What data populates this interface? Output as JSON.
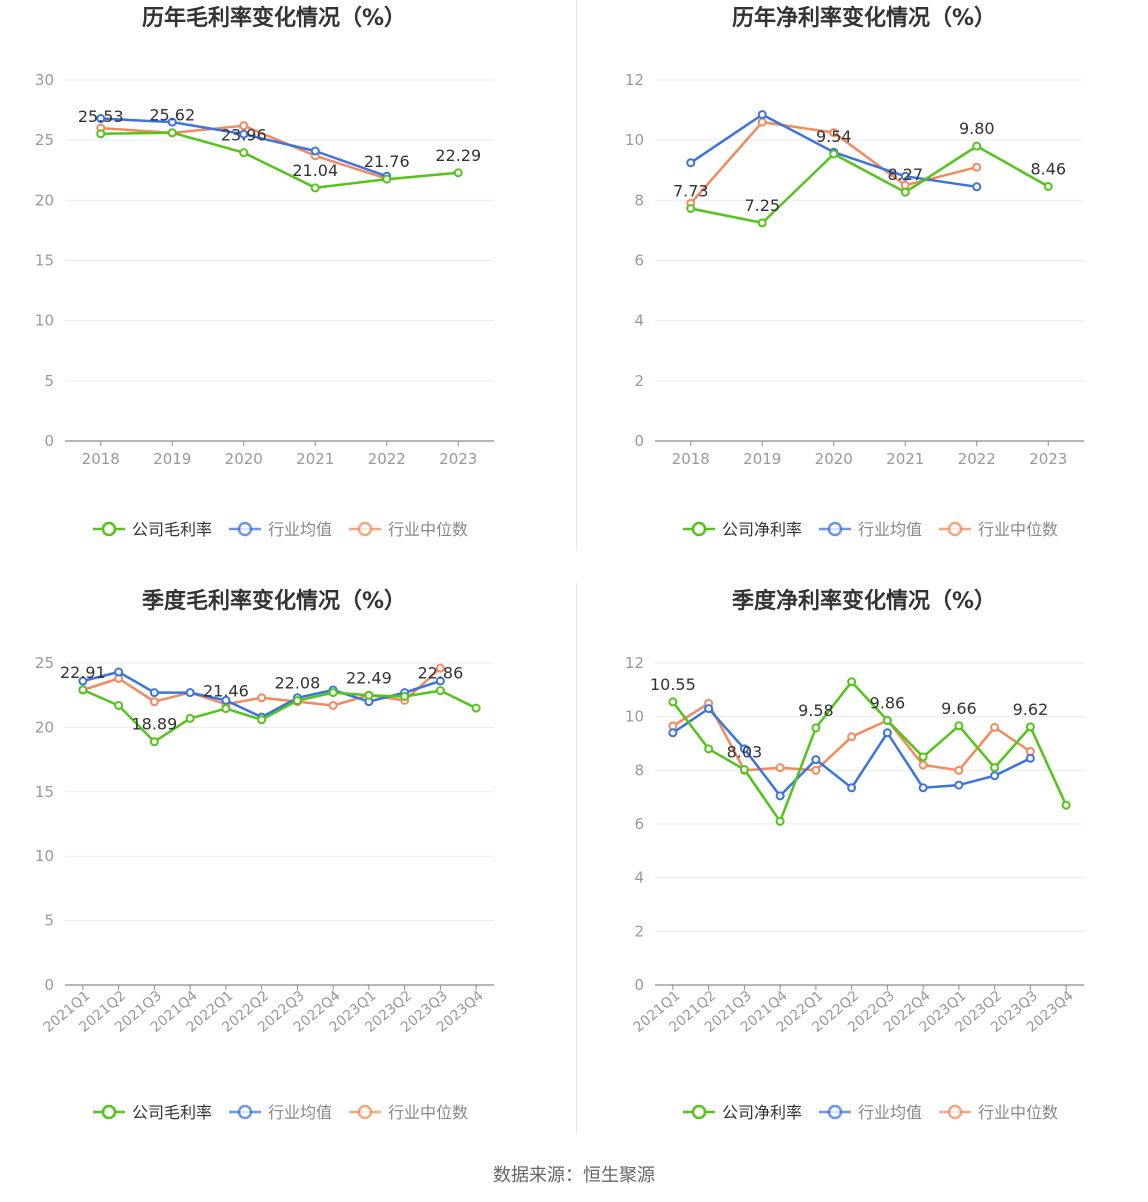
{
  "source": "数据来源：恒生聚源",
  "colors": {
    "company": "#52c41a",
    "avg": "#3b74e0",
    "median": "#f28a5c",
    "grid": "#e8ebf3",
    "axis": "#8c8c8c",
    "label": "#999999",
    "title": "#333333"
  },
  "chart_data": [
    {
      "type": "line",
      "title": "历年毛利率变化情况（%）",
      "categories": [
        "2018",
        "2019",
        "2020",
        "2021",
        "2022",
        "2023"
      ],
      "ylim": [
        0,
        30
      ],
      "yticks": [
        0,
        5,
        10,
        15,
        20,
        25,
        30
      ],
      "series": [
        {
          "name": "公司毛利率",
          "key": "company",
          "values": [
            25.53,
            25.62,
            23.96,
            21.04,
            21.76,
            22.29
          ]
        },
        {
          "name": "行业均值",
          "key": "avg",
          "values": [
            26.8,
            26.5,
            25.5,
            24.1,
            22.0,
            null
          ]
        },
        {
          "name": "行业中位数",
          "key": "median",
          "values": [
            26.0,
            25.6,
            26.2,
            23.7,
            21.8,
            null
          ]
        }
      ],
      "data_labels": [
        "25.53",
        "25.62",
        "23.96",
        "21.04",
        "21.76",
        "22.29"
      ],
      "legend": [
        "公司毛利率",
        "行业均值",
        "行业中位数"
      ],
      "legend_position": "bottom"
    },
    {
      "type": "line",
      "title": "历年净利率变化情况（%）",
      "categories": [
        "2018",
        "2019",
        "2020",
        "2021",
        "2022",
        "2023"
      ],
      "ylim": [
        0,
        12
      ],
      "yticks": [
        0,
        2,
        4,
        6,
        8,
        10,
        12
      ],
      "series": [
        {
          "name": "公司净利率",
          "key": "company",
          "values": [
            7.73,
            7.25,
            9.54,
            8.27,
            9.8,
            8.46
          ]
        },
        {
          "name": "行业均值",
          "key": "avg",
          "values": [
            9.25,
            10.85,
            9.6,
            8.8,
            8.45,
            null
          ]
        },
        {
          "name": "行业中位数",
          "key": "median",
          "values": [
            7.9,
            10.6,
            10.25,
            8.5,
            9.1,
            null
          ]
        }
      ],
      "data_labels": [
        "7.73",
        "7.25",
        "9.54",
        "8.27",
        "9.80",
        "8.46"
      ],
      "legend": [
        "公司净利率",
        "行业均值",
        "行业中位数"
      ],
      "legend_position": "bottom"
    },
    {
      "type": "line",
      "title": "季度毛利率变化情况（%）",
      "categories": [
        "2021Q1",
        "2021Q2",
        "2021Q3",
        "2021Q4",
        "2022Q1",
        "2022Q2",
        "2022Q3",
        "2022Q4",
        "2023Q1",
        "2023Q2",
        "2023Q3",
        "2023Q4"
      ],
      "ylim": [
        0,
        25
      ],
      "yticks": [
        0,
        5,
        10,
        15,
        20,
        25
      ],
      "series": [
        {
          "name": "公司毛利率",
          "key": "company",
          "values": [
            22.91,
            21.7,
            18.89,
            20.7,
            21.46,
            20.6,
            22.08,
            22.7,
            22.49,
            22.4,
            22.86,
            21.5
          ]
        },
        {
          "name": "行业均值",
          "key": "avg",
          "values": [
            23.6,
            24.3,
            22.7,
            22.7,
            22.1,
            20.8,
            22.3,
            22.9,
            22.0,
            22.7,
            23.6,
            null
          ]
        },
        {
          "name": "行业中位数",
          "key": "median",
          "values": [
            22.9,
            23.8,
            22.0,
            22.7,
            21.8,
            22.3,
            22.0,
            21.7,
            22.5,
            22.1,
            24.6,
            null
          ]
        }
      ],
      "data_labels": [
        "22.91",
        "",
        "18.89",
        "",
        "21.46",
        "",
        "22.08",
        "",
        "22.49",
        "",
        "22.86",
        ""
      ],
      "legend": [
        "公司毛利率",
        "行业均值",
        "行业中位数"
      ],
      "legend_position": "bottom"
    },
    {
      "type": "line",
      "title": "季度净利率变化情况（%）",
      "categories": [
        "2021Q1",
        "2021Q2",
        "2021Q3",
        "2021Q4",
        "2022Q1",
        "2022Q2",
        "2022Q3",
        "2022Q4",
        "2023Q1",
        "2023Q2",
        "2023Q3",
        "2023Q4"
      ],
      "ylim": [
        0,
        12
      ],
      "yticks": [
        0,
        2,
        4,
        6,
        8,
        10,
        12
      ],
      "series": [
        {
          "name": "公司净利率",
          "key": "company",
          "values": [
            10.55,
            8.8,
            8.03,
            6.1,
            9.58,
            11.3,
            9.86,
            8.5,
            9.66,
            8.1,
            9.62,
            6.7
          ]
        },
        {
          "name": "行业均值",
          "key": "avg",
          "values": [
            9.4,
            10.3,
            8.8,
            7.05,
            8.4,
            7.35,
            9.4,
            7.35,
            7.45,
            7.8,
            8.45,
            null
          ]
        },
        {
          "name": "行业中位数",
          "key": "median",
          "values": [
            9.65,
            10.5,
            8.0,
            8.1,
            8.0,
            9.25,
            9.86,
            8.2,
            8.0,
            9.6,
            8.7,
            null
          ]
        }
      ],
      "data_labels": [
        "10.55",
        "",
        "8.03",
        "",
        "9.58",
        "",
        "9.86",
        "",
        "9.66",
        "",
        "9.62",
        ""
      ],
      "legend": [
        "公司净利率",
        "行业均值",
        "行业中位数"
      ],
      "legend_position": "bottom"
    }
  ]
}
